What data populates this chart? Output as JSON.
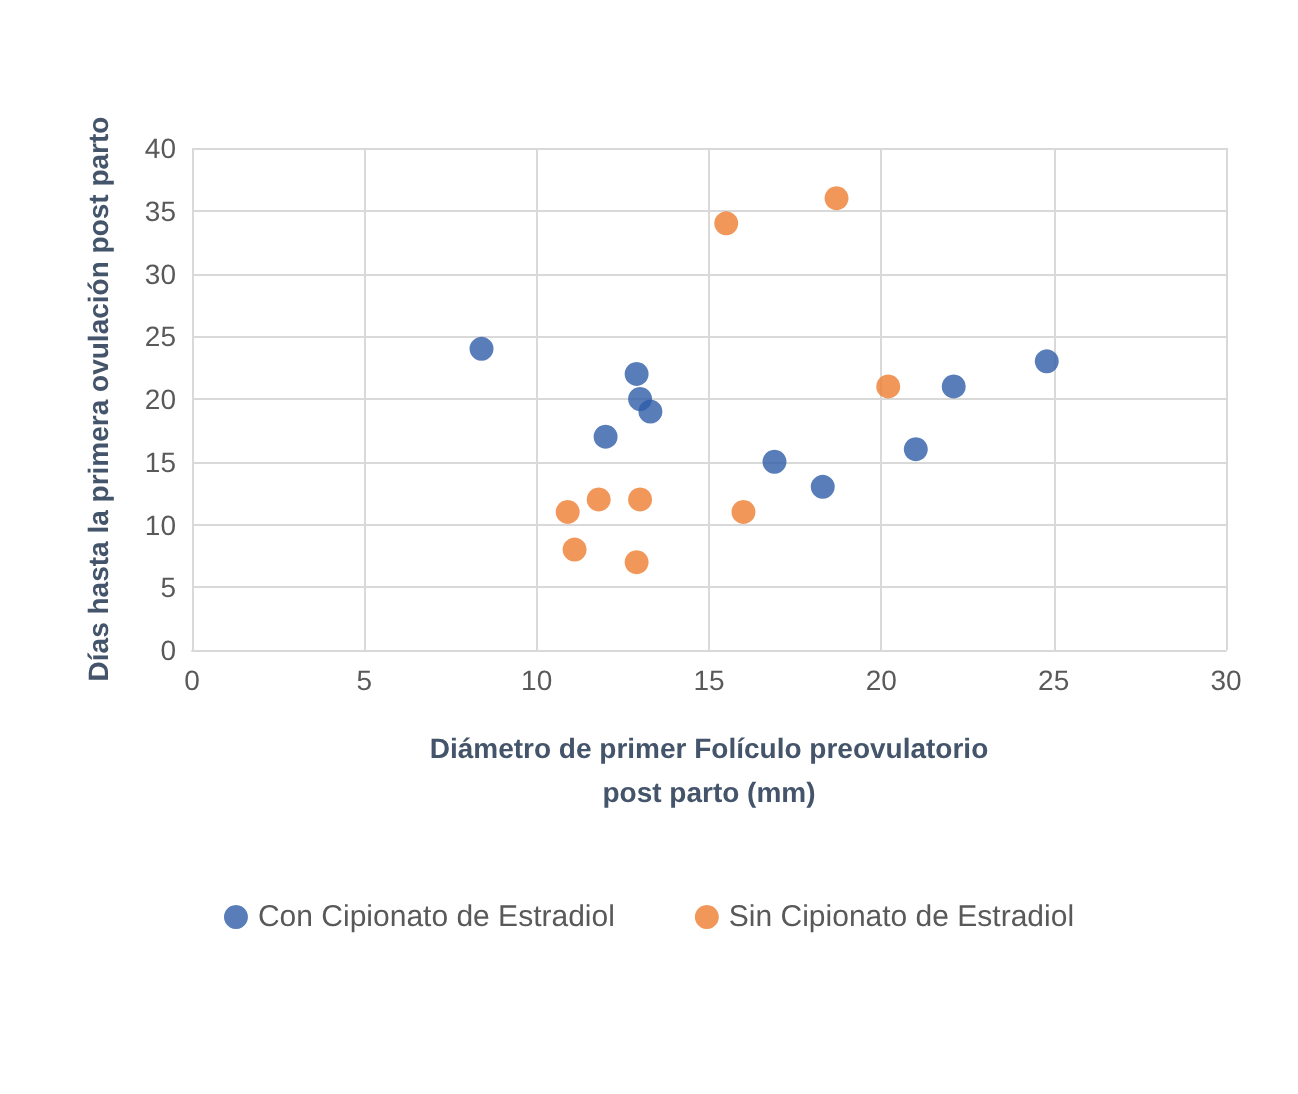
{
  "chart_data": {
    "type": "scatter",
    "xlabel": "Diámetro de primer Folículo preovulatorio\npost parto (mm)",
    "ylabel": "Días hasta la primera ovulación post parto",
    "series": [
      {
        "name": "Con Cipionato de Estradiol",
        "color": "#2e5da8",
        "x": [
          8.4,
          12.9,
          13.0,
          13.3,
          12.0,
          16.9,
          18.3,
          21.0,
          22.1,
          24.8
        ],
        "values": [
          24,
          22,
          20,
          19,
          17,
          15,
          13,
          16,
          21,
          23
        ]
      },
      {
        "name": "Sin Cipionato de Estradiol",
        "color": "#ed7d31",
        "x": [
          15.5,
          18.7,
          20.2,
          10.9,
          11.8,
          13.0,
          11.1,
          12.9,
          16.0
        ],
        "values": [
          34,
          36,
          21,
          11,
          12,
          12,
          8,
          7,
          11
        ]
      }
    ],
    "xlim": [
      0,
      30
    ],
    "xticks": [
      0,
      5,
      10,
      15,
      20,
      25,
      30
    ],
    "ylim": [
      0,
      40
    ],
    "yticks": [
      0,
      5,
      10,
      15,
      20,
      25,
      30,
      35,
      40
    ],
    "grid": true,
    "legend": "bottom",
    "marker": "circle"
  }
}
